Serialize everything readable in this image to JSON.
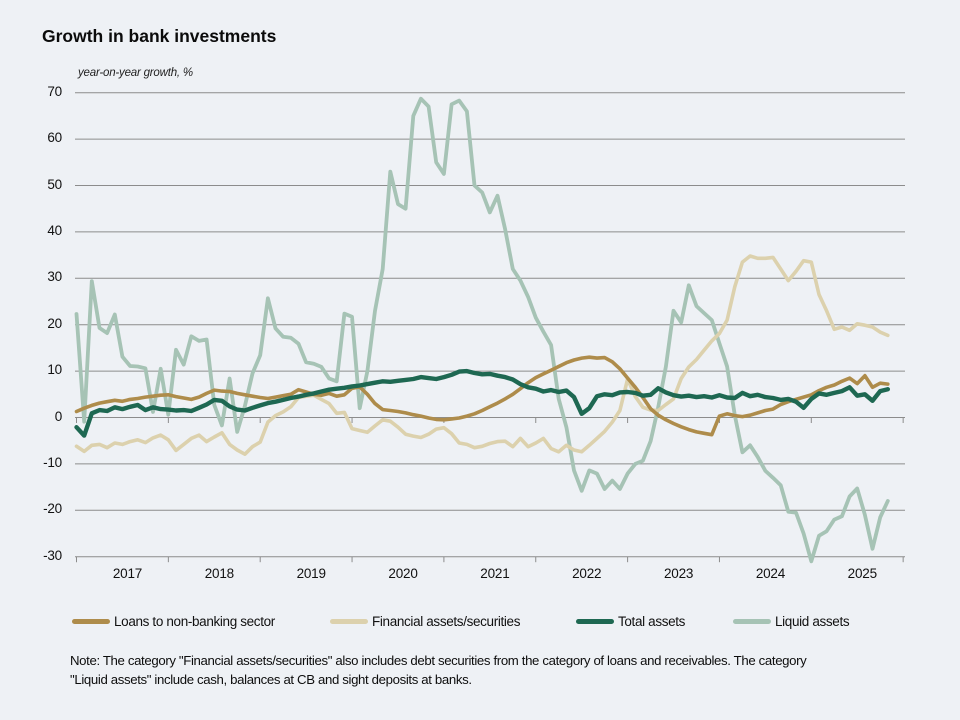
{
  "chart_data": {
    "type": "line",
    "title": "Growth in bank investments",
    "subtitle": "year-on-year growth, %",
    "x_start": "2017-01",
    "x_end": "2025-11",
    "x_frequency": "monthly",
    "x_tick_labels": [
      "2017",
      "2018",
      "2019",
      "2020",
      "2021",
      "2022",
      "2023",
      "2024",
      "2025"
    ],
    "ylim": [
      -30,
      70
    ],
    "y_ticks": [
      70,
      60,
      50,
      40,
      30,
      20,
      10,
      0,
      -10,
      -20,
      -30
    ],
    "grid": "horizontal",
    "legend_position": "bottom",
    "palette": {
      "background": "#eef1f5",
      "gridline": "#8c8c8c",
      "text": "#111111"
    },
    "series": [
      {
        "name": "Loans to non-banking sector",
        "color": "#ae8c4b",
        "stroke_width": 3.6,
        "values": [
          1.3,
          2.0,
          2.6,
          3.1,
          3.4,
          3.7,
          3.5,
          3.9,
          4.1,
          4.4,
          4.6,
          4.8,
          4.9,
          4.5,
          4.2,
          3.9,
          4.4,
          5.2,
          5.9,
          5.7,
          5.6,
          5.2,
          4.9,
          4.6,
          4.3,
          4.1,
          4.4,
          4.7,
          5.0,
          6.0,
          5.5,
          5.0,
          4.8,
          5.2,
          4.6,
          4.9,
          6.3,
          6.6,
          5.0,
          3.0,
          1.7,
          1.5,
          1.3,
          1.0,
          0.6,
          0.3,
          -0.1,
          -0.4,
          -0.5,
          -0.3,
          -0.1,
          0.3,
          0.8,
          1.5,
          2.3,
          3.1,
          4.0,
          5.0,
          6.2,
          7.5,
          8.6,
          9.4,
          10.2,
          11.0,
          11.8,
          12.4,
          12.8,
          13.0,
          12.8,
          12.9,
          12.0,
          10.5,
          8.5,
          6.5,
          4.3,
          1.9,
          0.5,
          -0.5,
          -1.3,
          -2.0,
          -2.6,
          -3.1,
          -3.4,
          -3.7,
          0.3,
          0.8,
          0.4,
          0.2,
          0.5,
          1.0,
          1.5,
          1.8,
          2.8,
          3.4,
          3.9,
          4.4,
          4.9,
          5.8,
          6.5,
          7.0,
          7.8,
          8.5,
          7.3,
          9.0,
          6.5,
          7.4,
          7.2
        ]
      },
      {
        "name": "Financial assets/securities",
        "color": "#dcd1ad",
        "stroke_width": 3.6,
        "values": [
          -6.2,
          -7.3,
          -6.0,
          -5.8,
          -6.5,
          -5.5,
          -5.8,
          -5.2,
          -4.8,
          -5.4,
          -4.4,
          -3.8,
          -4.8,
          -7.1,
          -5.8,
          -4.5,
          -3.8,
          -5.2,
          -4.2,
          -3.3,
          -5.8,
          -7.0,
          -7.9,
          -6.3,
          -5.3,
          -1.0,
          0.4,
          1.2,
          2.3,
          4.3,
          4.6,
          4.8,
          3.9,
          3.0,
          0.9,
          1.1,
          -2.4,
          -2.8,
          -3.2,
          -1.8,
          -0.5,
          -0.8,
          -2.1,
          -3.6,
          -4.0,
          -4.3,
          -3.6,
          -2.5,
          -2.2,
          -3.5,
          -5.5,
          -5.8,
          -6.5,
          -6.2,
          -5.6,
          -5.2,
          -5.1,
          -6.3,
          -4.5,
          -6.3,
          -5.5,
          -4.5,
          -6.7,
          -7.4,
          -6.0,
          -7.0,
          -7.4,
          -6.0,
          -4.5,
          -3.0,
          -1.0,
          1.5,
          8.3,
          4.5,
          2.2,
          1.6,
          1.5,
          2.8,
          4.0,
          8.4,
          10.9,
          12.5,
          14.5,
          16.5,
          18.1,
          21.0,
          28.2,
          33.5,
          34.8,
          34.3,
          34.3,
          34.5,
          32.0,
          29.5,
          31.5,
          33.8,
          33.5,
          26.5,
          23.0,
          19.0,
          19.5,
          18.8,
          20.2,
          19.9,
          19.5,
          18.4,
          17.7
        ]
      },
      {
        "name": "Total assets",
        "color": "#1e6852",
        "stroke_width": 4.4,
        "values": [
          -2.1,
          -3.9,
          0.9,
          1.6,
          1.4,
          2.2,
          1.8,
          2.3,
          2.7,
          1.6,
          2.2,
          1.8,
          1.7,
          1.5,
          1.6,
          1.4,
          2.1,
          2.8,
          3.8,
          3.6,
          2.4,
          1.7,
          1.5,
          2.1,
          2.6,
          3.1,
          3.4,
          3.8,
          4.2,
          4.5,
          4.9,
          5.2,
          5.6,
          6.0,
          6.2,
          6.4,
          6.7,
          6.9,
          7.2,
          7.5,
          7.8,
          7.7,
          7.9,
          8.1,
          8.3,
          8.7,
          8.5,
          8.3,
          8.7,
          9.2,
          9.9,
          10.0,
          9.6,
          9.3,
          9.4,
          9.0,
          8.7,
          8.2,
          7.2,
          6.5,
          6.2,
          5.6,
          5.9,
          5.5,
          5.8,
          4.4,
          0.8,
          2.0,
          4.6,
          5.0,
          4.8,
          5.4,
          5.5,
          5.3,
          4.7,
          4.9,
          6.3,
          5.4,
          4.8,
          4.5,
          4.7,
          4.4,
          4.6,
          4.3,
          4.8,
          4.3,
          4.2,
          5.3,
          4.6,
          4.9,
          4.4,
          4.2,
          3.8,
          4.0,
          3.4,
          2.1,
          4.0,
          5.2,
          4.9,
          5.3,
          5.7,
          6.5,
          4.7,
          5.0,
          3.6,
          5.7,
          6.1
        ]
      },
      {
        "name": "Liquid assets",
        "color": "#a6c3b5",
        "stroke_width": 3.8,
        "values": [
          22.3,
          -0.9,
          29.4,
          19.3,
          18.2,
          22.2,
          13.1,
          11.1,
          11.0,
          10.6,
          1.2,
          10.5,
          0.6,
          14.6,
          11.4,
          17.5,
          16.5,
          16.8,
          2.7,
          -1.7,
          8.4,
          -3.1,
          2.5,
          9.5,
          13.4,
          25.7,
          19.2,
          17.4,
          17.2,
          15.9,
          11.9,
          11.6,
          10.9,
          8.4,
          7.8,
          22.4,
          21.7,
          2.0,
          10.0,
          23.0,
          32.0,
          53.0,
          46.0,
          45.0,
          65.0,
          68.7,
          67.0,
          55.0,
          52.5,
          67.5,
          68.3,
          66.0,
          50.0,
          48.5,
          44.2,
          47.8,
          40.6,
          32.0,
          29.5,
          26.0,
          21.5,
          18.5,
          15.6,
          4.0,
          -2.1,
          -11.4,
          -15.8,
          -11.4,
          -12.1,
          -15.4,
          -13.6,
          -15.4,
          -12.1,
          -10.0,
          -9.3,
          -5.1,
          2.2,
          11.0,
          23.0,
          20.5,
          28.5,
          24.0,
          22.5,
          21.0,
          16.0,
          11.0,
          0.5,
          -7.5,
          -6.0,
          -8.5,
          -11.5,
          -13.0,
          -14.6,
          -20.3,
          -20.5,
          -25.0,
          -31.0,
          -25.5,
          -24.5,
          -22.0,
          -21.3,
          -17.0,
          -15.3,
          -21.0,
          -28.3,
          -21.5,
          -18.0
        ]
      }
    ]
  },
  "note": {
    "lines": [
      "Note: The category \"Financial assets/securities\" also includes debt securities from the category of loans and receivables. The category",
      "\"Liquid assets\" include cash, balances at CB and sight deposits at banks."
    ]
  }
}
